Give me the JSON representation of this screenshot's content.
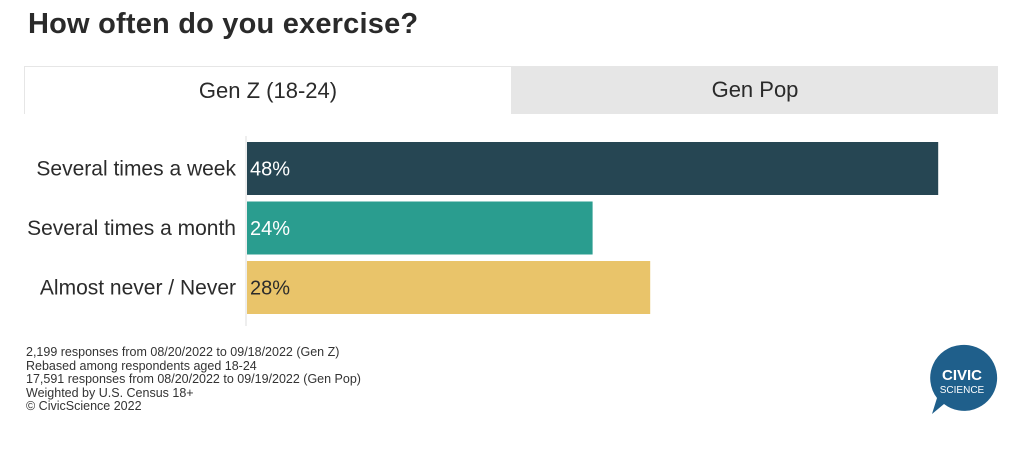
{
  "title": "How often do you exercise?",
  "tabs": [
    {
      "label": "Gen Z (18-24)",
      "active": true
    },
    {
      "label": "Gen Pop",
      "active": false
    }
  ],
  "chart_data": {
    "type": "bar",
    "orientation": "horizontal",
    "categories": [
      "Several times a week",
      "Several times a month",
      "Almost never / Never"
    ],
    "values": [
      48,
      24,
      28
    ],
    "value_labels": [
      "48%",
      "24%",
      "28%"
    ],
    "colors": [
      "#264653",
      "#2a9d8f",
      "#e9c46a"
    ],
    "label_colors": [
      "#ffffff",
      "#ffffff",
      "#2b2b2b"
    ],
    "xlim": [
      0,
      50
    ],
    "grid": false,
    "legend": "none"
  },
  "footnotes": [
    "2,199 responses from 08/20/2022 to 09/18/2022 (Gen Z)",
    "Rebased among respondents aged 18-24",
    "17,591 responses from 08/20/2022 to 09/19/2022 (Gen Pop)",
    "Weighted by U.S. Census 18+",
    "© CivicScience 2022"
  ],
  "logo": {
    "line1": "CIVIC",
    "line2": "SCIENCE",
    "color": "#1f5f8b"
  }
}
